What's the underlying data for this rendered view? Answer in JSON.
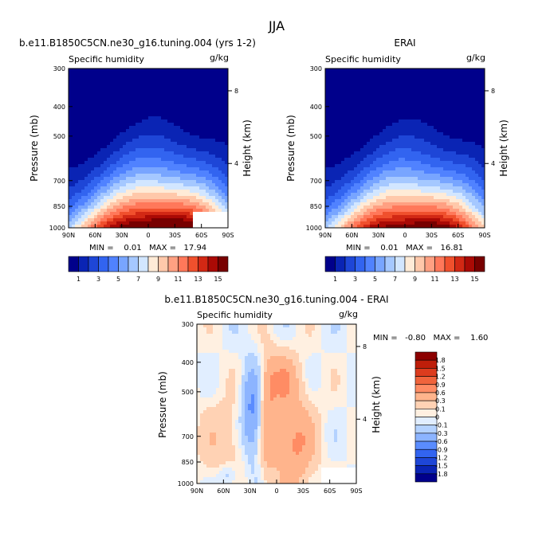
{
  "page_title": "JJA",
  "panels": [
    {
      "title": "b.e11.B1850C5CN.ne30_g16.tuning.004 (yrs 1-2)",
      "variable": "Specific humidity",
      "units": "g/kg",
      "ylabel": "Pressure (mb)",
      "ylabel_right": "Height (km)",
      "stats": "MIN =    0.01   MAX =   17.94"
    },
    {
      "title": "ERAI",
      "variable": "Specific humidity",
      "units": "g/kg",
      "ylabel": "Pressure (mb)",
      "ylabel_right": "Height (km)",
      "stats": "MIN =    0.01   MAX =   16.81"
    },
    {
      "title": "b.e11.B1850C5CN.ne30_g16.tuning.004 - ERAI",
      "variable": "Specific humidity",
      "units": "g/kg",
      "ylabel": "Pressure (mb)",
      "ylabel_right": "Height (km)",
      "stats": "MIN =   -0.80   MAX =    1.60"
    }
  ],
  "colors": {
    "abs_scale": [
      "#00008b",
      "#0a24b4",
      "#1e46d7",
      "#3264f0",
      "#5082ff",
      "#78a5ff",
      "#a5c8ff",
      "#d2e6ff",
      "#ffebd7",
      "#ffc8aa",
      "#ffa082",
      "#ff785a",
      "#f0502d",
      "#d22814",
      "#aa0a05",
      "#780000"
    ],
    "diff_scale": [
      "#00008b",
      "#0a24b4",
      "#1e46d7",
      "#3264f0",
      "#5a8cff",
      "#8cb4ff",
      "#b4d2ff",
      "#e1eeff",
      "#fff0e1",
      "#ffd2b4",
      "#ffb48c",
      "#ff8c64",
      "#f0643c",
      "#dc3c1e",
      "#be1e0a",
      "#8c0000"
    ]
  },
  "chart_data": [
    {
      "type": "heatmap",
      "name": "model",
      "x_ticks": [
        "90N",
        "60N",
        "30N",
        "0",
        "30S",
        "60S",
        "90S"
      ],
      "y_ticks": [
        "300",
        "400",
        "500",
        "700",
        "850",
        "1000"
      ],
      "y_ticks_right": [
        "8",
        "4"
      ],
      "x_range": [
        90,
        -90
      ],
      "y_range_mb": [
        300,
        1000
      ],
      "colorbar_labels": [
        "1",
        "3",
        "5",
        "7",
        "9",
        "11",
        "13",
        "15"
      ],
      "levels": [
        0,
        1,
        2,
        3,
        4,
        5,
        6,
        7,
        8,
        9,
        10,
        11,
        12,
        13,
        14,
        15,
        16
      ],
      "min": 0.01,
      "max": 17.94
    },
    {
      "type": "heatmap",
      "name": "obs",
      "x_ticks": [
        "90N",
        "60N",
        "30N",
        "0",
        "30S",
        "60S",
        "90S"
      ],
      "y_ticks": [
        "300",
        "400",
        "500",
        "700",
        "850",
        "1000"
      ],
      "y_ticks_right": [
        "8",
        "4"
      ],
      "x_range": [
        90,
        -90
      ],
      "y_range_mb": [
        300,
        1000
      ],
      "colorbar_labels": [
        "1",
        "3",
        "5",
        "7",
        "9",
        "11",
        "13",
        "15"
      ],
      "levels": [
        0,
        1,
        2,
        3,
        4,
        5,
        6,
        7,
        8,
        9,
        10,
        11,
        12,
        13,
        14,
        15,
        16
      ],
      "min": 0.01,
      "max": 16.81
    },
    {
      "type": "heatmap",
      "name": "difference",
      "x_ticks": [
        "90N",
        "60N",
        "30N",
        "0",
        "30S",
        "60S",
        "90S"
      ],
      "y_ticks": [
        "300",
        "400",
        "500",
        "700",
        "850",
        "1000"
      ],
      "y_ticks_right": [
        "8",
        "4"
      ],
      "x_range": [
        90,
        -90
      ],
      "y_range_mb": [
        300,
        1000
      ],
      "colorbar_labels": [
        "1.8",
        "1.5",
        "1.2",
        "0.9",
        "0.6",
        "0.3",
        "0.1",
        "0",
        "-0.1",
        "-0.3",
        "-0.6",
        "-0.9",
        "-1.2",
        "-1.5",
        "-1.8"
      ],
      "min": -0.8,
      "max": 1.6
    }
  ]
}
